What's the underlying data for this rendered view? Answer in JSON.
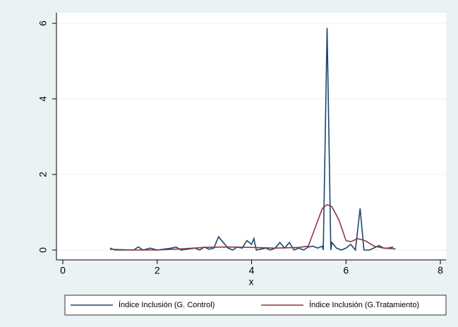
{
  "chart_data": {
    "type": "line",
    "x_label": "x",
    "xlim": [
      0,
      8
    ],
    "xticks": [
      0,
      2,
      4,
      6,
      8
    ],
    "ylim": [
      0,
      6
    ],
    "yticks": [
      0,
      2,
      4,
      6
    ],
    "grid": true,
    "legend": "bottom",
    "series": [
      {
        "name": "Índice Inclusión (G. Control)",
        "color": "#1a476f",
        "x": [
          1.0,
          1.1,
          1.5,
          1.6,
          1.7,
          1.85,
          2.0,
          2.3,
          2.4,
          2.5,
          2.8,
          2.9,
          3.0,
          3.1,
          3.2,
          3.3,
          3.4,
          3.5,
          3.6,
          3.7,
          3.8,
          3.9,
          4.0,
          4.05,
          4.1,
          4.3,
          4.4,
          4.5,
          4.6,
          4.7,
          4.8,
          4.9,
          5.0,
          5.1,
          5.2,
          5.3,
          5.4,
          5.5,
          5.52,
          5.6,
          5.68,
          5.7,
          5.8,
          5.9,
          6.0,
          6.1,
          6.2,
          6.3,
          6.38,
          6.5,
          6.7,
          6.8,
          6.9,
          7.0
        ],
        "values": [
          0.05,
          0.0,
          0.0,
          0.08,
          0.0,
          0.05,
          0.0,
          0.05,
          0.08,
          0.0,
          0.05,
          0.0,
          0.08,
          0.02,
          0.05,
          0.35,
          0.2,
          0.05,
          0.0,
          0.08,
          0.05,
          0.25,
          0.15,
          0.3,
          0.0,
          0.05,
          0.0,
          0.05,
          0.2,
          0.05,
          0.2,
          0.0,
          0.05,
          0.0,
          0.08,
          0.1,
          0.05,
          0.1,
          0.0,
          5.88,
          0.0,
          0.2,
          0.05,
          0.0,
          0.05,
          0.15,
          0.0,
          1.1,
          0.0,
          0.0,
          0.12,
          0.05,
          0.05,
          0.08
        ]
      },
      {
        "name": "Índice Inclusión (G.Tratamiento)",
        "color": "#90353b",
        "x": [
          1.0,
          1.5,
          2.0,
          2.5,
          3.0,
          3.5,
          4.0,
          4.5,
          5.0,
          5.2,
          5.35,
          5.5,
          5.6,
          5.7,
          5.85,
          6.0,
          6.1,
          6.25,
          6.4,
          6.6,
          6.8,
          7.05
        ],
        "values": [
          0.02,
          0.0,
          0.0,
          0.03,
          0.07,
          0.08,
          0.07,
          0.05,
          0.07,
          0.1,
          0.6,
          1.1,
          1.2,
          1.15,
          0.8,
          0.25,
          0.22,
          0.3,
          0.25,
          0.1,
          0.05,
          0.03
        ]
      }
    ]
  }
}
